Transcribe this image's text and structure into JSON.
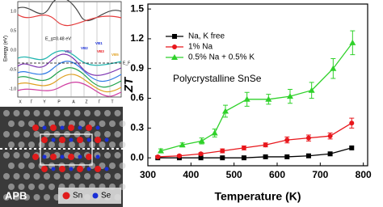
{
  "chart_data": {
    "type": "line",
    "y_label": "ZT",
    "x_label": "Temperature (K)",
    "annotation": "Polycrystalline SnSe",
    "xlim": [
      300,
      810
    ],
    "xticks": [
      300,
      400,
      500,
      600,
      700,
      800
    ],
    "ylim": [
      -0.08,
      1.55
    ],
    "yticks": [
      {
        "value": 0,
        "label": "0.0"
      },
      0.3,
      0.6,
      0.9,
      1.2,
      1.5
    ],
    "legend": "upper left",
    "series": [
      {
        "name": "Na, K free",
        "color": "#000000",
        "marker": "square",
        "x": [
          323,
          373,
          423,
          473,
          523,
          573,
          623,
          673,
          723,
          773
        ],
        "values": [
          0,
          0,
          0,
          0,
          0,
          0.01,
          0.01,
          0.02,
          0.04,
          0.1
        ]
      },
      {
        "name": "1% Na",
        "color": "#e8171c",
        "marker": "circle",
        "x": [
          323,
          373,
          423,
          473,
          523,
          573,
          623,
          673,
          723,
          773
        ],
        "values": [
          0.01,
          0.02,
          0.04,
          0.07,
          0.1,
          0.13,
          0.18,
          0.2,
          0.22,
          0.35
        ],
        "errors": [
          0.01,
          0.01,
          0.01,
          0.02,
          0.02,
          0.02,
          0.03,
          0.03,
          0.03,
          0.05
        ]
      },
      {
        "name": "0.5% Na + 0.5% K",
        "color": "#2fd12a",
        "marker": "triangle",
        "x": [
          330,
          380,
          425,
          455,
          480,
          530,
          580,
          630,
          680,
          730,
          775
        ],
        "values": [
          0.07,
          0.13,
          0.17,
          0.25,
          0.47,
          0.59,
          0.59,
          0.62,
          0.68,
          0.9,
          1.16
        ],
        "errors": [
          0.02,
          0.02,
          0.03,
          0.04,
          0.06,
          0.07,
          0.05,
          0.07,
          0.08,
          0.1,
          0.12
        ]
      }
    ]
  },
  "band_panel": {
    "y_label": "Energy (eV)",
    "gap_label": "E_g=0.48 eV",
    "fermi_label": "E_F",
    "y_tick_labels": [
      "1.0",
      "0.5",
      "0.0",
      "-0.5",
      "-1.0"
    ],
    "k_labels": [
      "X",
      "Γ",
      "Y",
      "P",
      "A",
      "Z",
      "Γ",
      "T"
    ],
    "band_labels": [
      "VB1",
      "VB2",
      "VB3",
      "VB4",
      "VB5"
    ]
  },
  "stem_panel": {
    "label": "APB",
    "legend": [
      "Sn",
      "Se"
    ]
  }
}
